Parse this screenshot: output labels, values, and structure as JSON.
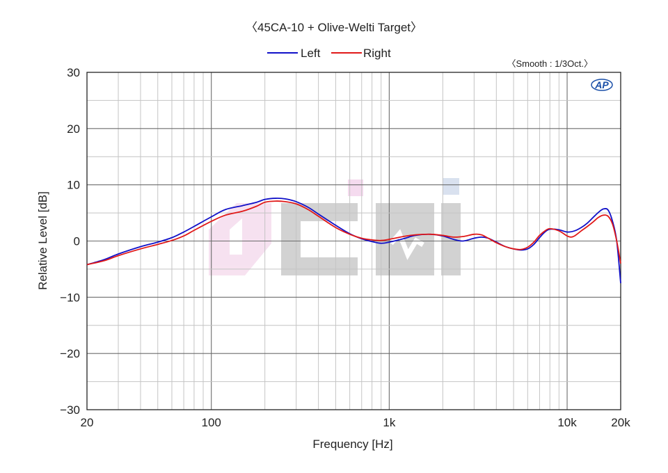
{
  "chart_data": {
    "type": "line",
    "title": "〈45CA-10 + Olive-Welti Target〉",
    "note": "〈Smooth : 1/3Oct.〉",
    "logo_text": "AP",
    "watermark_text": "Ciri",
    "xlabel": "Frequency [Hz]",
    "ylabel": "Relative Level [dB]",
    "x_scale": "log",
    "xlim": [
      20,
      20000
    ],
    "ylim": [
      -30,
      30
    ],
    "x_ticks": [
      {
        "value": 20,
        "label": "20"
      },
      {
        "value": 100,
        "label": "100"
      },
      {
        "value": 1000,
        "label": "1k"
      },
      {
        "value": 10000,
        "label": "10k"
      },
      {
        "value": 20000,
        "label": "20k"
      }
    ],
    "y_ticks": [
      {
        "value": 30,
        "label": "30"
      },
      {
        "value": 20,
        "label": "20"
      },
      {
        "value": 10,
        "label": "10"
      },
      {
        "value": 0,
        "label": "0"
      },
      {
        "value": -10,
        "label": "−10"
      },
      {
        "value": -20,
        "label": "−20"
      },
      {
        "value": -30,
        "label": "−30"
      }
    ],
    "grid": true,
    "legend_position": "top-center",
    "series": [
      {
        "name": "Left",
        "color": "#1010c8",
        "points": [
          [
            20,
            -4.2
          ],
          [
            25,
            -3.3
          ],
          [
            30,
            -2.3
          ],
          [
            40,
            -1.0
          ],
          [
            50,
            -0.2
          ],
          [
            60,
            0.6
          ],
          [
            70,
            1.6
          ],
          [
            80,
            2.6
          ],
          [
            100,
            4.3
          ],
          [
            120,
            5.6
          ],
          [
            150,
            6.3
          ],
          [
            180,
            6.9
          ],
          [
            200,
            7.4
          ],
          [
            230,
            7.6
          ],
          [
            260,
            7.5
          ],
          [
            300,
            7.0
          ],
          [
            350,
            6.0
          ],
          [
            400,
            4.8
          ],
          [
            500,
            2.8
          ],
          [
            600,
            1.3
          ],
          [
            700,
            0.4
          ],
          [
            800,
            -0.1
          ],
          [
            900,
            -0.4
          ],
          [
            1000,
            -0.2
          ],
          [
            1200,
            0.4
          ],
          [
            1400,
            1.0
          ],
          [
            1700,
            1.2
          ],
          [
            2000,
            0.9
          ],
          [
            2300,
            0.3
          ],
          [
            2600,
            0.0
          ],
          [
            3000,
            0.5
          ],
          [
            3300,
            0.7
          ],
          [
            3600,
            0.5
          ],
          [
            4000,
            -0.2
          ],
          [
            4500,
            -1.0
          ],
          [
            5000,
            -1.4
          ],
          [
            5500,
            -1.6
          ],
          [
            6000,
            -1.4
          ],
          [
            6500,
            -0.6
          ],
          [
            7000,
            0.6
          ],
          [
            7500,
            1.6
          ],
          [
            8000,
            2.1
          ],
          [
            9000,
            2.0
          ],
          [
            10000,
            1.6
          ],
          [
            11000,
            1.8
          ],
          [
            12000,
            2.4
          ],
          [
            13000,
            3.2
          ],
          [
            14000,
            4.2
          ],
          [
            15000,
            5.1
          ],
          [
            16000,
            5.7
          ],
          [
            17000,
            5.5
          ],
          [
            18000,
            3.5
          ],
          [
            19000,
            0.0
          ],
          [
            20000,
            -7.5
          ]
        ]
      },
      {
        "name": "Right",
        "color": "#e01818",
        "points": [
          [
            20,
            -4.2
          ],
          [
            25,
            -3.5
          ],
          [
            30,
            -2.6
          ],
          [
            40,
            -1.4
          ],
          [
            50,
            -0.6
          ],
          [
            60,
            0.1
          ],
          [
            70,
            0.9
          ],
          [
            80,
            1.9
          ],
          [
            100,
            3.5
          ],
          [
            120,
            4.6
          ],
          [
            150,
            5.3
          ],
          [
            180,
            6.2
          ],
          [
            200,
            6.9
          ],
          [
            230,
            7.1
          ],
          [
            260,
            7.0
          ],
          [
            300,
            6.6
          ],
          [
            350,
            5.6
          ],
          [
            400,
            4.4
          ],
          [
            500,
            2.4
          ],
          [
            600,
            1.2
          ],
          [
            700,
            0.5
          ],
          [
            800,
            0.2
          ],
          [
            900,
            0.1
          ],
          [
            1000,
            0.3
          ],
          [
            1200,
            0.8
          ],
          [
            1400,
            1.1
          ],
          [
            1700,
            1.2
          ],
          [
            2000,
            1.0
          ],
          [
            2300,
            0.7
          ],
          [
            2600,
            0.8
          ],
          [
            3000,
            1.2
          ],
          [
            3300,
            1.1
          ],
          [
            3600,
            0.5
          ],
          [
            4000,
            -0.3
          ],
          [
            4500,
            -1.0
          ],
          [
            5000,
            -1.4
          ],
          [
            5500,
            -1.5
          ],
          [
            6000,
            -1.1
          ],
          [
            6500,
            -0.2
          ],
          [
            7000,
            1.0
          ],
          [
            7500,
            1.8
          ],
          [
            8000,
            2.2
          ],
          [
            9000,
            1.8
          ],
          [
            10000,
            0.9
          ],
          [
            10500,
            0.7
          ],
          [
            11000,
            0.9
          ],
          [
            12000,
            1.8
          ],
          [
            13000,
            2.6
          ],
          [
            14000,
            3.4
          ],
          [
            15000,
            4.2
          ],
          [
            16000,
            4.6
          ],
          [
            17000,
            4.4
          ],
          [
            18000,
            3.0
          ],
          [
            19000,
            0.0
          ],
          [
            20000,
            -4.0
          ]
        ]
      }
    ]
  }
}
